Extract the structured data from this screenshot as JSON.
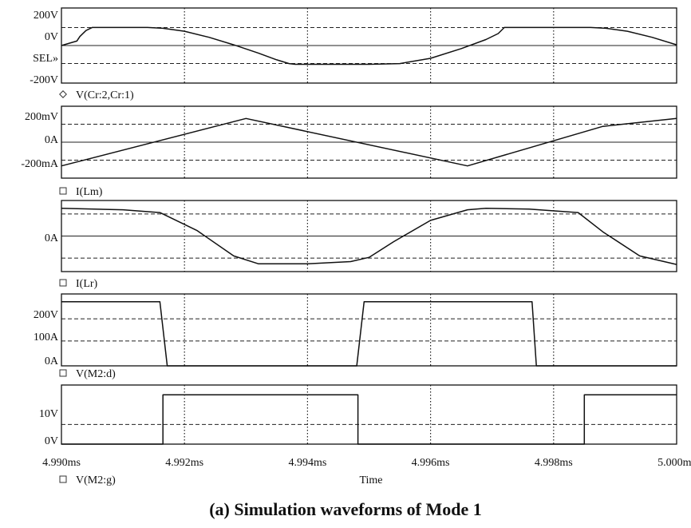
{
  "chart_data": {
    "type": "line",
    "x_range_ms": [
      4.99,
      5.0
    ],
    "grid": true,
    "x_tick_labels": [
      "4.990ms",
      "4.992ms",
      "4.994ms",
      "4.996ms",
      "4.998ms",
      "5.000ms"
    ],
    "x_tick_values": [
      4.99,
      4.992,
      4.994,
      4.996,
      4.998,
      5.0
    ],
    "xlabel": "Time",
    "caption": "(a) Simulation waveforms of Mode 1",
    "panels": [
      {
        "legend": "V(Cr:2,Cr:1)",
        "y_tick_labels": [
          "200V",
          "0V",
          "SEL»",
          "-200V"
        ],
        "y_range": [
          -250,
          250
        ],
        "dashed_levels": [
          120,
          -120
        ],
        "series": [
          {
            "x": [
              4.99,
              4.99025,
              4.9903,
              4.9904,
              4.9905,
              4.9914,
              4.99165,
              4.992,
              4.9924,
              4.9928,
              4.9932,
              4.9935,
              4.9937,
              4.9938,
              4.995,
              4.9955,
              4.996,
              4.9965,
              4.9969,
              4.9971,
              4.9972,
              4.9986,
              4.99885,
              4.9992,
              4.9996,
              5.0
            ],
            "y": [
              0,
              30,
              60,
              100,
              120,
              120,
              115,
              95,
              55,
              5,
              -50,
              -95,
              -120,
              -125,
              -125,
              -120,
              -85,
              -20,
              40,
              80,
              120,
              120,
              115,
              95,
              55,
              5
            ]
          }
        ]
      },
      {
        "legend": "I(Lm)",
        "y_tick_labels": [
          "200mV",
          "0A",
          "-200mA"
        ],
        "y_range": [
          -250,
          250
        ],
        "dashed_levels": [
          125,
          -125
        ],
        "series": [
          {
            "x": [
              4.99,
              4.993,
              4.9966,
              4.9988,
              5.0
            ],
            "y": [
              -165,
              165,
              -165,
              110,
              165
            ]
          }
        ]
      },
      {
        "legend": "I(Lr)",
        "y_tick_labels": [
          "0A"
        ],
        "y_range": [
          -250,
          250
        ],
        "dashed_levels": [
          155,
          -155
        ],
        "series": [
          {
            "x": [
              4.99,
              4.991,
              4.9916,
              4.9922,
              4.9928,
              4.9932,
              4.994,
              4.9947,
              4.995,
              4.9954,
              4.996,
              4.9966,
              4.9969,
              4.9976,
              4.9984,
              4.9988,
              4.9994,
              5.0
            ],
            "y": [
              195,
              185,
              165,
              40,
              -140,
              -195,
              -195,
              -180,
              -150,
              -40,
              110,
              185,
              195,
              190,
              165,
              30,
              -140,
              -200
            ]
          }
        ]
      },
      {
        "legend": "V(M2:d)",
        "y_tick_labels": [
          "200V",
          "100A",
          "0A"
        ],
        "y_range": [
          0,
          275
        ],
        "dashed_levels": [
          180,
          95
        ],
        "series": [
          {
            "x": [
              4.99,
              4.9915,
              4.9916,
              4.99172,
              4.9922,
              4.9948,
              4.99492,
              4.995,
              4.9975,
              4.99765,
              4.99772,
              5.0
            ],
            "y": [
              245,
              245,
              245,
              0,
              0,
              0,
              245,
              245,
              245,
              245,
              0,
              0
            ]
          }
        ]
      },
      {
        "legend": "V(M2:g)",
        "y_tick_labels": [
          "10V",
          "0V"
        ],
        "y_range": [
          0,
          18
        ],
        "dashed_levels": [
          6
        ],
        "series": [
          {
            "x": [
              4.99,
              4.99165,
              4.99165,
              4.99482,
              4.99482,
              4.9985,
              4.9985,
              5.0
            ],
            "y": [
              0,
              0,
              15,
              15,
              0,
              0,
              15,
              15
            ]
          }
        ]
      }
    ]
  }
}
